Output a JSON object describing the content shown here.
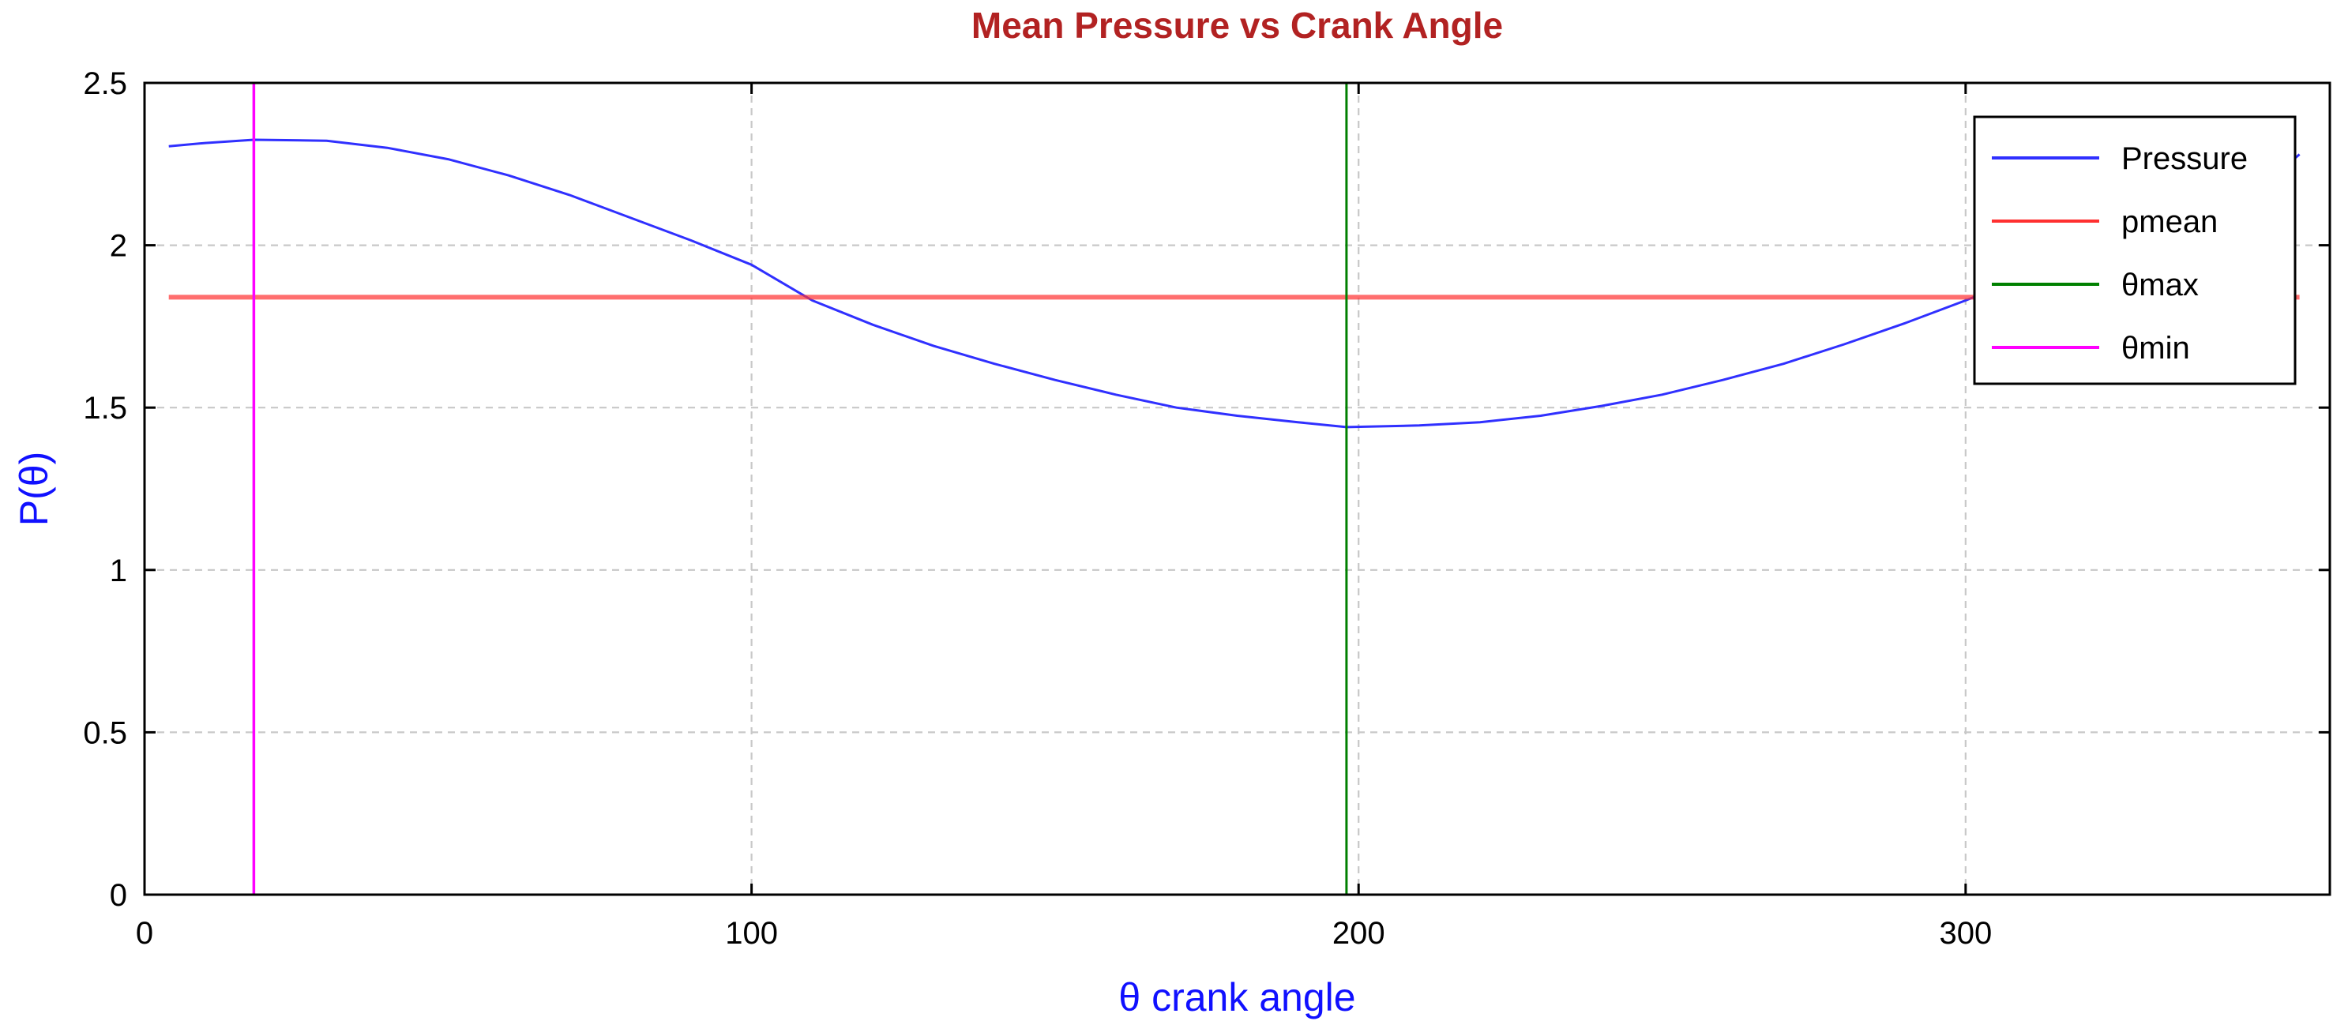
{
  "chart_data": {
    "type": "line",
    "title": "Mean Pressure vs Crank Angle",
    "xlabel": "θ crank angle",
    "ylabel": "P(θ)",
    "xlim": [
      0,
      360
    ],
    "ylim": [
      0,
      2.5
    ],
    "xticks": [
      0,
      100,
      200,
      300
    ],
    "xtick_labels": [
      "0",
      "100",
      "200",
      "300"
    ],
    "yticks": [
      0,
      0.5,
      1,
      1.5,
      2,
      2.5
    ],
    "ytick_labels": [
      "0",
      "0.5",
      "1",
      "1.5",
      "2",
      "2.5"
    ],
    "grid": true,
    "legend_position": "top-right",
    "series": [
      {
        "name": "Pressure",
        "color": "#3030ff",
        "x": [
          4,
          10,
          18,
          30,
          40,
          50,
          60,
          70,
          80,
          90,
          100,
          110,
          120,
          130,
          140,
          150,
          160,
          170,
          180,
          190,
          198,
          210,
          220,
          230,
          240,
          250,
          260,
          270,
          280,
          290,
          300,
          310,
          320,
          330,
          340,
          350,
          355
        ],
        "y": [
          2.305,
          2.315,
          2.325,
          2.322,
          2.3,
          2.265,
          2.215,
          2.155,
          2.085,
          2.015,
          1.94,
          1.83,
          1.755,
          1.69,
          1.635,
          1.585,
          1.54,
          1.5,
          1.475,
          1.455,
          1.44,
          1.445,
          1.455,
          1.475,
          1.505,
          1.54,
          1.585,
          1.635,
          1.695,
          1.76,
          1.83,
          1.905,
          1.985,
          2.06,
          2.13,
          2.2,
          2.28
        ]
      },
      {
        "name": "pmean",
        "color": "#ff3030",
        "x": [
          4,
          355
        ],
        "y": [
          1.84,
          1.84
        ]
      },
      {
        "name": "θmax",
        "color": "#008000",
        "x": [
          198,
          198
        ],
        "y": [
          0,
          2.5
        ]
      },
      {
        "name": "θmin",
        "color": "#ff00ff",
        "x": [
          18,
          18
        ],
        "y": [
          0,
          2.5
        ]
      }
    ],
    "colors": {
      "title": "#b22222",
      "axis_title": "#1010ff"
    }
  }
}
